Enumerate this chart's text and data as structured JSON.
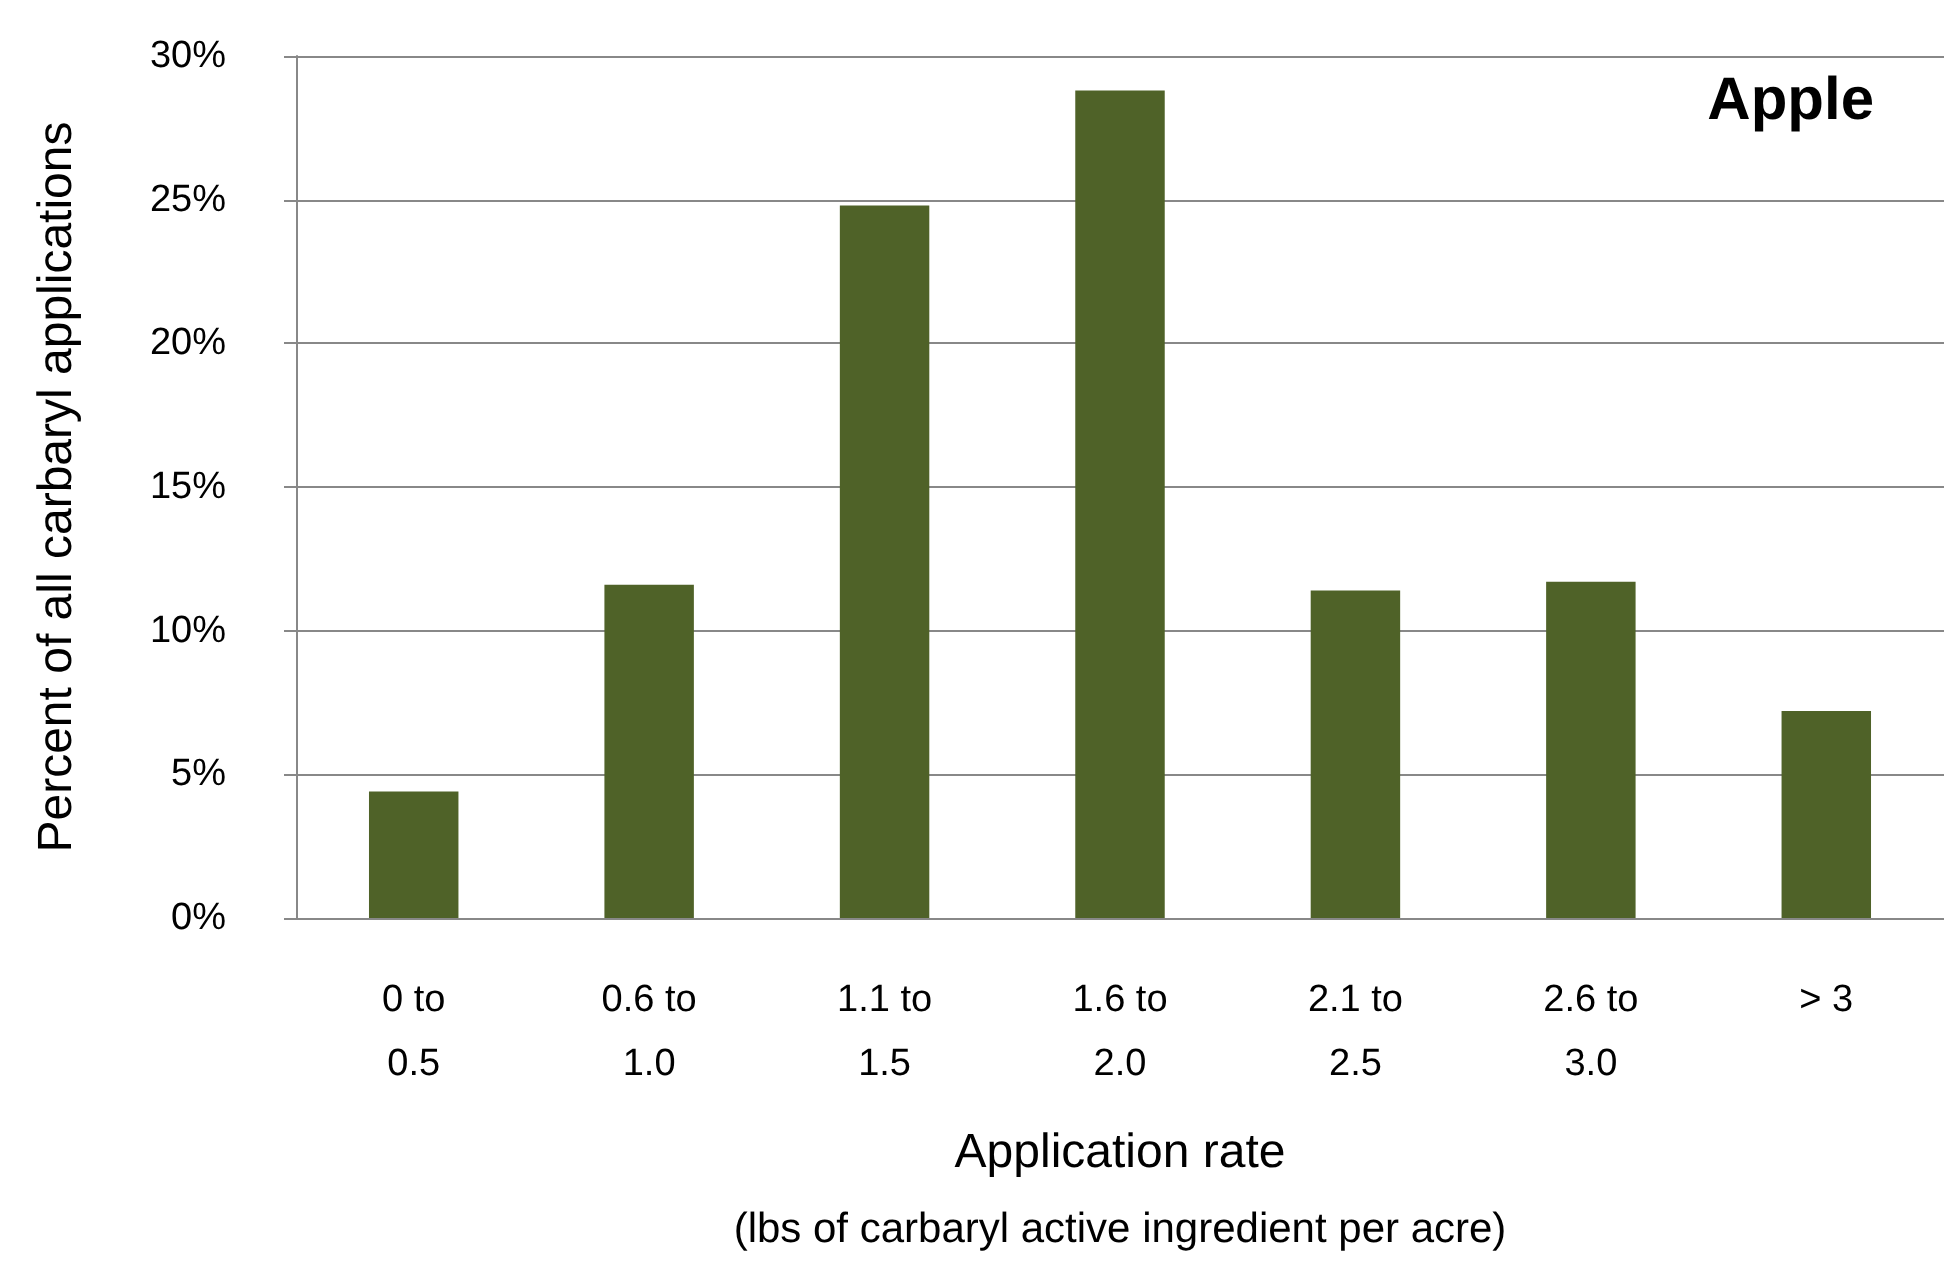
{
  "chart_data": {
    "type": "bar",
    "title": "Apple",
    "xlabel": "Application rate",
    "ylabel": "Percent of all carbaryl applications",
    "annotations": [
      "(lbs of carbaryl active ingredient per acre)"
    ],
    "categories": [
      "0 to\n0.5",
      "0.6 to\n1.0",
      "1.1 to\n1.5",
      "1.6 to\n2.0",
      "2.1 to\n2.5",
      "2.6 to\n3.0",
      "> 3"
    ],
    "values": [
      4.4,
      11.6,
      24.8,
      28.8,
      11.4,
      11.7,
      7.2
    ],
    "color": "#4f6228",
    "ylim": [
      0,
      30
    ],
    "yticks": [
      {
        "value": 0,
        "label": "0%"
      },
      {
        "value": 5,
        "label": "5%"
      },
      {
        "value": 10,
        "label": "10%"
      },
      {
        "value": 15,
        "label": "15%"
      },
      {
        "value": 20,
        "label": "20%"
      },
      {
        "value": 25,
        "label": "25%"
      },
      {
        "value": 30,
        "label": "30%"
      }
    ],
    "grid": "y"
  }
}
